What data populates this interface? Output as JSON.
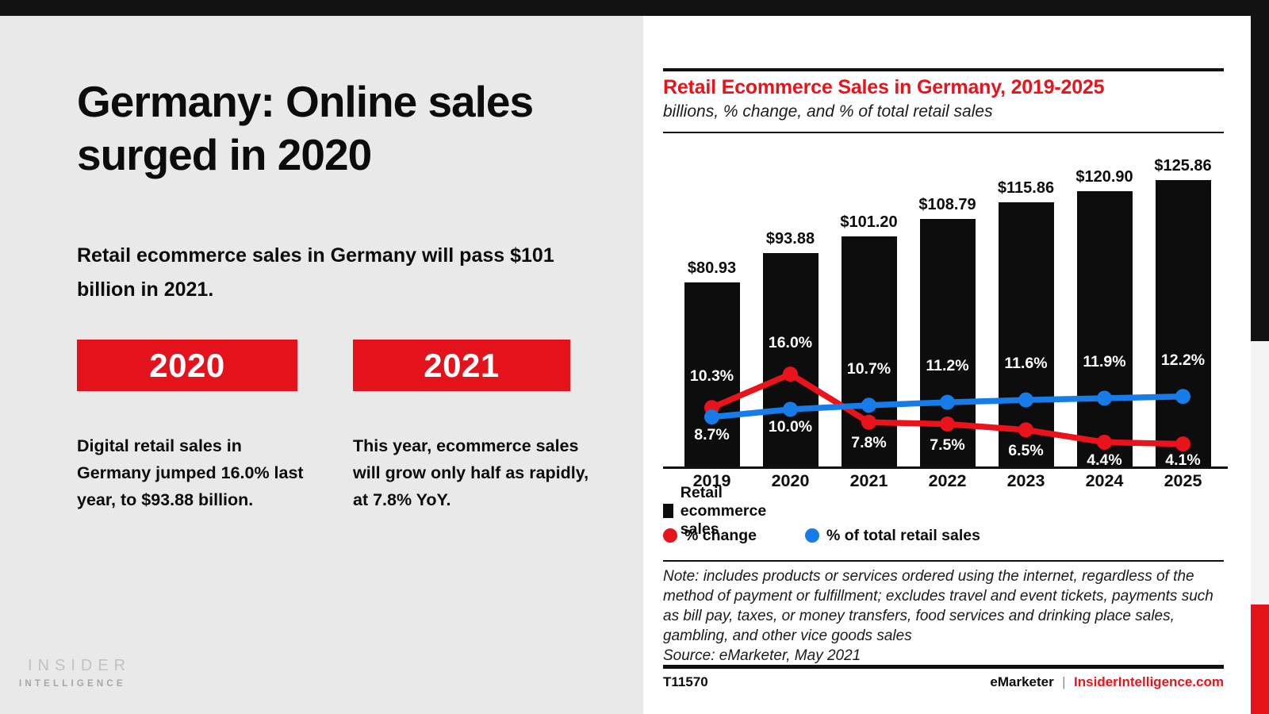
{
  "colors": {
    "accent_red": "#e4131b",
    "line_red": "#e8131b",
    "line_blue": "#177be8",
    "bar_black": "#0d0d0d",
    "page_gray": "#e9e9e9"
  },
  "left_panel": {
    "title": "Germany: Online sales surged in 2020",
    "subtitle": "Retail ecommerce sales in Germany will pass $101 billion in 2021.",
    "columns": [
      {
        "badge": "2020",
        "text": "Digital retail sales in Germany jumped 16.0% last year, to $93.88 billion."
      },
      {
        "badge": "2021",
        "text": "This year, ecommerce sales will grow only half as rapidly, at 7.8% YoY."
      }
    ],
    "logo": {
      "line1": "INSIDER",
      "line2": "INTELLIGENCE"
    }
  },
  "chart_panel": {
    "title": "Retail Ecommerce Sales in Germany, 2019-2025",
    "subtitle": "billions, % change, and % of total retail sales",
    "legend": [
      {
        "label": "Retail ecommerce sales",
        "marker": "black-square"
      },
      {
        "label": "% change",
        "marker": "red-dot"
      },
      {
        "label": "% of total retail sales",
        "marker": "blue-dot"
      }
    ],
    "note": "Note: includes products or services ordered using the internet, regardless of the method of payment or fulfillment; excludes travel and event tickets, payments such as bill pay, taxes, or money transfers, food services and drinking place sales, gambling, and other vice goods sales",
    "source": "Source: eMarketer, May 2021",
    "footer_left": "T11570",
    "footer_brand": "eMarketer",
    "footer_divider": "|",
    "footer_site": "InsiderIntelligence.com"
  },
  "chart_data": {
    "type": "bar+line",
    "title": "Retail Ecommerce Sales in Germany, 2019-2025",
    "subtitle": "billions, % change, and % of total retail sales",
    "categories": [
      "2019",
      "2020",
      "2021",
      "2022",
      "2023",
      "2024",
      "2025"
    ],
    "series": [
      {
        "name": "Retail ecommerce sales",
        "type": "bar",
        "unit": "USD billions",
        "color": "#0d0d0d",
        "values": [
          80.93,
          93.88,
          101.2,
          108.79,
          115.86,
          120.9,
          125.86
        ],
        "labels": [
          "$80.93",
          "$93.88",
          "$101.20",
          "$108.79",
          "$115.86",
          "$120.90",
          "$125.86"
        ]
      },
      {
        "name": "% change",
        "type": "line",
        "color": "#e8131b",
        "values": [
          10.3,
          16.0,
          7.8,
          7.5,
          6.5,
          4.4,
          4.1
        ]
      },
      {
        "name": "% of total retail sales",
        "type": "line",
        "color": "#177be8",
        "values": [
          8.7,
          10.0,
          10.7,
          11.2,
          11.6,
          11.9,
          12.2
        ]
      }
    ],
    "legend_position": "bottom",
    "grid": false
  }
}
